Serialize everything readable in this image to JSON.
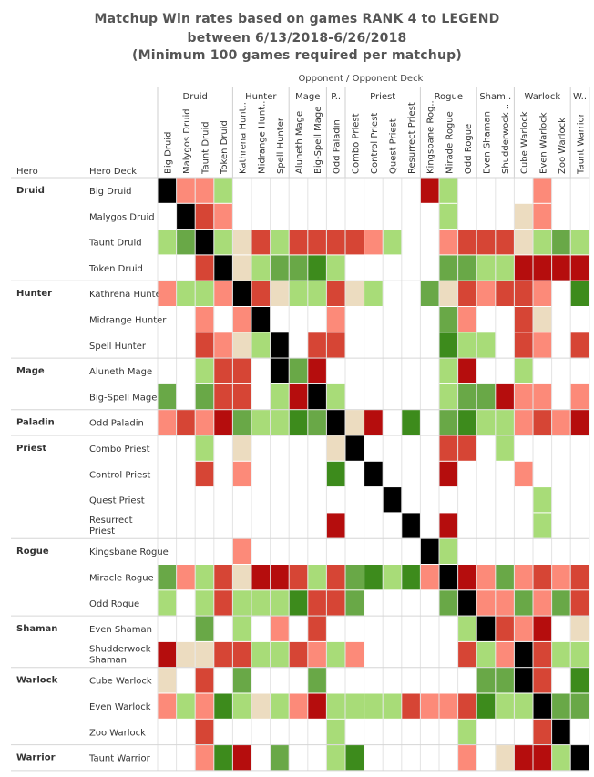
{
  "title_lines": [
    "Matchup Win rates based on games RANK 4 to LEGEND",
    "between 6/13/2018-6/26/2018",
    "(Minimum 100 games required per matchup)"
  ],
  "opponent_header": "Opponent  /  Opponent Deck",
  "hero_header": "Hero",
  "hero_deck_header": "Hero Deck",
  "colors": {
    "black": "#000000",
    "dark_red": "#b50d0d",
    "red": "#d64535",
    "salmon": "#fc8a79",
    "tan": "#ecdcc0",
    "light_green": "#a8dc78",
    "green": "#69a847",
    "dark_green": "#3d8b1c",
    "empty": "#ffffff",
    "grid": "#e3e3e3"
  },
  "chart_data": {
    "type": "heatmap",
    "title": "Matchup Win rates based on games RANK 4 to LEGEND between 6/13/2018-6/26/2018 (Minimum 100 games required per matchup)",
    "xlabel": "Opponent / Opponent Deck",
    "ylabel": "Hero / Hero Deck",
    "color_scale_note": "k = mirror (black), R = strong loss, r = loss, s = slight loss, t = even, l = slight win, g = win, G = strong win, . = no data",
    "class_groups": [
      {
        "name": "Druid",
        "short": "Druid",
        "count": 4
      },
      {
        "name": "Hunter",
        "short": "Hunter",
        "count": 3
      },
      {
        "name": "Mage",
        "short": "Mage",
        "count": 2
      },
      {
        "name": "Paladin",
        "short": "P..",
        "count": 1
      },
      {
        "name": "Priest",
        "short": "Priest",
        "count": 4
      },
      {
        "name": "Rogue",
        "short": "Rogue",
        "count": 3
      },
      {
        "name": "Shaman",
        "short": "Sham..",
        "count": 2
      },
      {
        "name": "Warlock",
        "short": "Warlock",
        "count": 3
      },
      {
        "name": "Warrior",
        "short": "W..",
        "count": 1
      }
    ],
    "columns": [
      "Big Druid",
      "Malygos Druid",
      "Taunt Druid",
      "Token Druid",
      "Kathrena Hunt..",
      "Midrange Hunt..",
      "Spell Hunter",
      "Aluneth Mage",
      "Big-Spell Mage",
      "Odd Paladin",
      "Combo Priest",
      "Control Priest",
      "Quest Priest",
      "Resurrect Priest",
      "Kingsbane Rog..",
      "Mirade Rogue",
      "Odd Rogue",
      "Even Shaman",
      "Shudderwock ..",
      "Cube Warlock",
      "Even Warlock",
      "Zoo Warlock",
      "Taunt Warrior"
    ],
    "rows": [
      {
        "hero": "Druid",
        "deck": "Big Druid",
        "cells": "kssl..........Rl....s.."
      },
      {
        "hero": "",
        "deck": "Malygos Druid",
        "cells": ".krs...........l...ts.."
      },
      {
        "hero": "",
        "deck": "Taunt Druid",
        "cells": "lgkltrlrrrrsl..srrrtlgl"
      },
      {
        "hero": "",
        "deck": "Token Druid",
        "cells": "..rktlggGl.....ggllRRRR"
      },
      {
        "hero": "Hunter",
        "deck": "Kathrena Hunter",
        "cells": "sllskrtllrtl..gtrsrrs.G"
      },
      {
        "hero": "",
        "deck": "Midrange Hunter",
        "cells": "..s.sk...s.....gs..rt.."
      },
      {
        "hero": "",
        "deck": "Spell Hunter",
        "cells": "..rstlk.rr.....Gll.rs.r"
      },
      {
        "hero": "Mage",
        "deck": "Aluneth Mage",
        "cells": "..lrr.kgR......lR..l..."
      },
      {
        "hero": "",
        "deck": "Big-Spell Mage",
        "cells": "g.grr.lRkl.....lggRss.s"
      },
      {
        "hero": "Paladin",
        "deck": "Odd Paladin",
        "cells": "srsRgllGgktR.G.gGllsrsR"
      },
      {
        "hero": "Priest",
        "deck": "Combo Priest",
        "cells": "..l.t....tk....rr.l...."
      },
      {
        "hero": "",
        "deck": "Control Priest",
        "cells": "..r.s....G.k...R...s..."
      },
      {
        "hero": "",
        "deck": "Quest Priest",
        "cells": "............k.......l.."
      },
      {
        "hero": "",
        "deck": "Resurrect Priest",
        "cells": ".........R...k.R....l.."
      },
      {
        "hero": "Rogue",
        "deck": "Kingsbane Rogue",
        "cells": "....s.........kl......."
      },
      {
        "hero": "",
        "deck": "Miracle Rogue",
        "cells": "gslrtRRrlrgGlGskRsgsrsr"
      },
      {
        "hero": "",
        "deck": "Odd Rogue",
        "cells": "l.lrlllGrrg....gkssgsgr"
      },
      {
        "hero": "Shaman",
        "deck": "Even Shaman",
        "cells": "..g.l.s.r.......lkrsR.t"
      },
      {
        "hero": "",
        "deck": "Shudderwock Shaman",
        "cells": "Rttrrllrsls.....rlskrll"
      },
      {
        "hero": "Warlock",
        "deck": "Cube Warlock",
        "cells": "t.r.g...g........ggkr.G"
      },
      {
        "hero": "",
        "deck": "Even Warlock",
        "cells": "slsGltlsRllllrssrGllkgg"
      },
      {
        "hero": "",
        "deck": "Zoo Warlock",
        "cells": "..r......l......l...rk."
      },
      {
        "hero": "Warrior",
        "deck": "Taunt Warrior",
        "cells": "..sGR.g..lG.....s.tRRlk"
      }
    ]
  }
}
